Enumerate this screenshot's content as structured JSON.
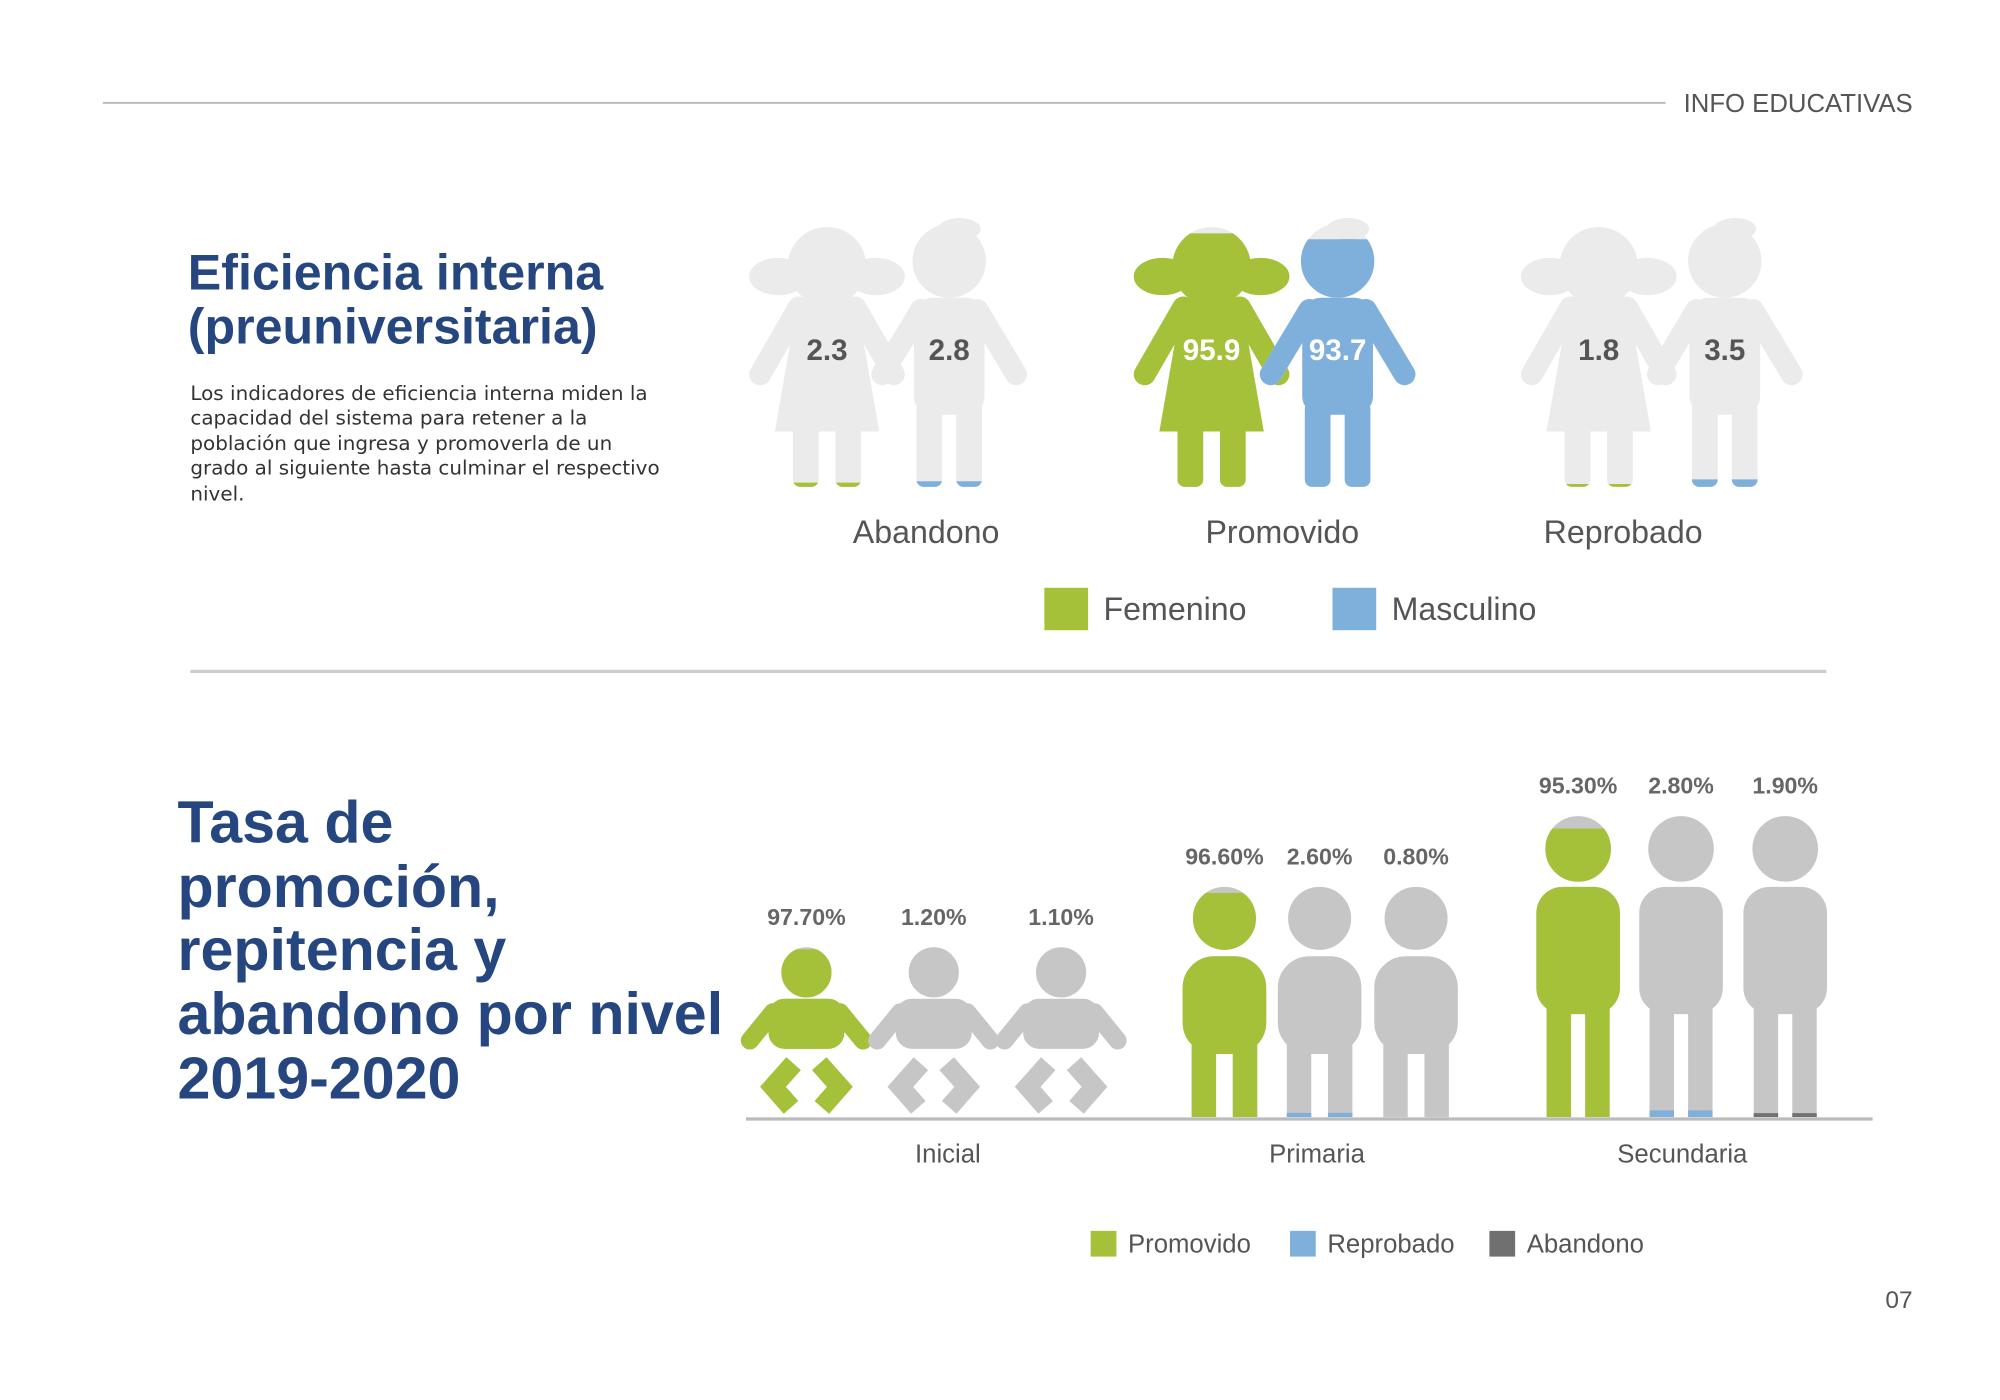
{
  "header": "INFO EDUCATIVAS",
  "page_number": "07",
  "chart_data": [
    {
      "type": "pictogram",
      "figure": "pair",
      "title": "Eficiencia interna (preuniversitaria)",
      "description": "Los indicadores de eficiencia interna miden la capacidad del sistema para retener a la población que ingresa y promoverla de un grado al siguiente hasta culminar el respectivo nivel.",
      "categories": [
        "Abandono",
        "Promovido",
        "Reprobado"
      ],
      "ylim": [
        0,
        100
      ],
      "series": [
        {
          "name": "Femenino",
          "color": "#a4c139",
          "values": [
            2.3,
            95.9,
            1.8
          ]
        },
        {
          "name": "Masculino",
          "color": "#7fb0dc",
          "values": [
            2.8,
            93.7,
            3.5
          ]
        }
      ]
    },
    {
      "type": "pictogram",
      "figure": "level",
      "title": "Tasa de promoción, repitencia y abandono por nivel 2019-2020",
      "categories": [
        "Inicial",
        "Primaria",
        "Secundaria"
      ],
      "ylim": [
        0,
        100
      ],
      "series": [
        {
          "name": "Promovido",
          "color": "#a4c139",
          "values": [
            97.7,
            96.6,
            95.3
          ],
          "value_labels": [
            "97.70%",
            "96.60%",
            "95.30%"
          ]
        },
        {
          "name": "Reprobado",
          "color": "#7fb0dc",
          "values": [
            1.2,
            2.6,
            2.8
          ],
          "value_labels": [
            "1.20%",
            "2.60%",
            "2.80%"
          ]
        },
        {
          "name": "Abandono",
          "color": "#707070",
          "values": [
            1.1,
            0.8,
            1.9
          ],
          "value_labels": [
            "1.10%",
            "0.80%",
            "1.90%"
          ]
        }
      ]
    }
  ]
}
